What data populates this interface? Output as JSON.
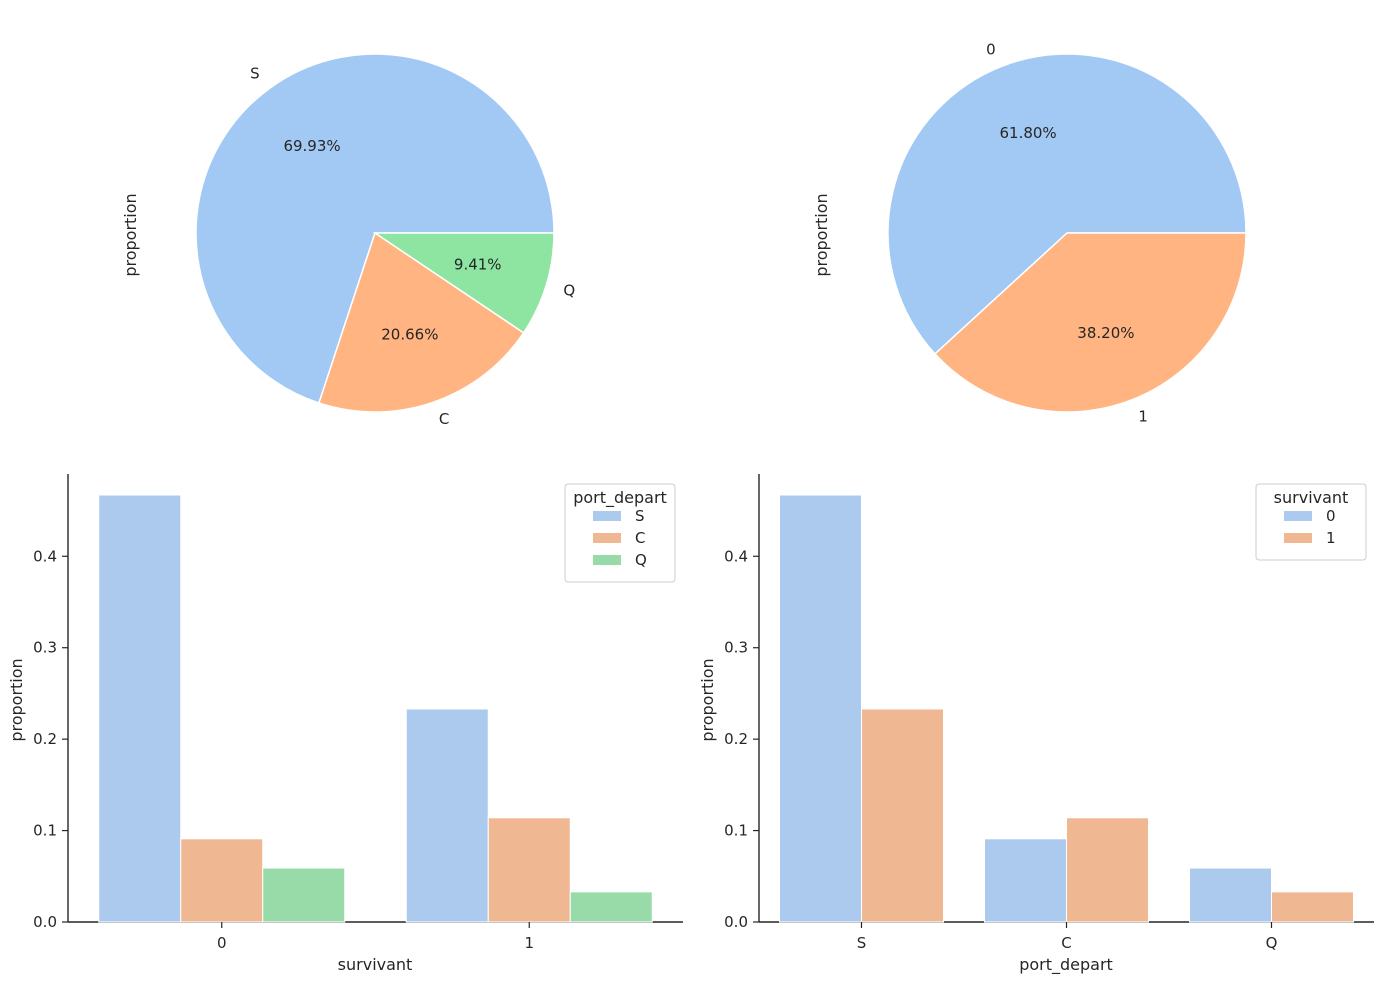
{
  "colors": {
    "S": "#a1c9f4",
    "C": "#ffb482",
    "Q": "#8de5a1",
    "0": "#a1c9f4",
    "1": "#ffb482",
    "bar_S": "#abcaee",
    "bar_C": "#efb892",
    "bar_Q": "#98dba9",
    "bar_0": "#abcaee",
    "bar_1": "#efb892"
  },
  "chart_data": [
    {
      "type": "pie",
      "ylabel": "proportion",
      "labels": [
        "S",
        "C",
        "Q"
      ],
      "values": [
        69.93,
        20.66,
        9.41
      ],
      "pct_labels": [
        "69.93%",
        "20.66%",
        "9.41%"
      ]
    },
    {
      "type": "pie",
      "ylabel": "proportion",
      "labels": [
        "0",
        "1"
      ],
      "values": [
        61.8,
        38.2
      ],
      "pct_labels": [
        "61.80%",
        "38.20%"
      ]
    },
    {
      "type": "bar",
      "xlabel": "survivant",
      "ylabel": "proportion",
      "categories": [
        "0",
        "1"
      ],
      "ylim": [
        0,
        0.49
      ],
      "yticks": [
        "0.0",
        "0.1",
        "0.2",
        "0.3",
        "0.4"
      ],
      "legend": {
        "title": "port_depart",
        "position": "top-right"
      },
      "series": [
        {
          "name": "S",
          "values": [
            0.467,
            0.233
          ]
        },
        {
          "name": "C",
          "values": [
            0.091,
            0.114
          ]
        },
        {
          "name": "Q",
          "values": [
            0.059,
            0.033
          ]
        }
      ]
    },
    {
      "type": "bar",
      "xlabel": "port_depart",
      "ylabel": "proportion",
      "categories": [
        "S",
        "C",
        "Q"
      ],
      "ylim": [
        0,
        0.49
      ],
      "yticks": [
        "0.0",
        "0.1",
        "0.2",
        "0.3",
        "0.4"
      ],
      "legend": {
        "title": "survivant",
        "position": "top-right"
      },
      "series": [
        {
          "name": "0",
          "values": [
            0.467,
            0.091,
            0.059
          ]
        },
        {
          "name": "1",
          "values": [
            0.233,
            0.114,
            0.033
          ]
        }
      ]
    }
  ]
}
